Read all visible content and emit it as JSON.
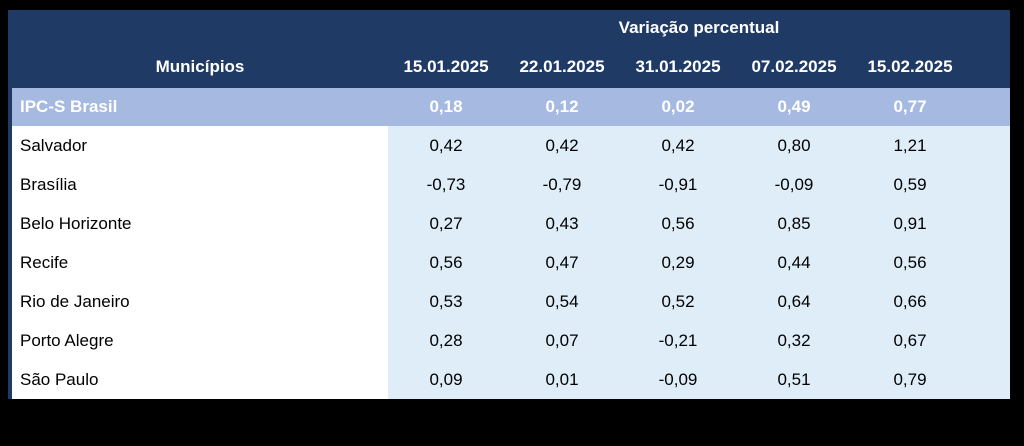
{
  "colors": {
    "page_bg": "#000000",
    "header_bg": "#203A66",
    "highlight_bg": "#A5B9E1",
    "values_bg": "#DEEDF8",
    "header_text": "#FFFFFF",
    "body_text": "#000000"
  },
  "table": {
    "group_header": "Variação percentual",
    "municipios_header": "Municípios",
    "date_columns": [
      "15.01.2025",
      "22.01.2025",
      "31.01.2025",
      "07.02.2025",
      "15.02.2025"
    ],
    "highlight_row": {
      "label": "IPC-S Brasil",
      "values": [
        "0,18",
        "0,12",
        "0,02",
        "0,49",
        "0,77"
      ]
    },
    "rows": [
      {
        "label": "Salvador",
        "values": [
          "0,42",
          "0,42",
          "0,42",
          "0,80",
          "1,21"
        ]
      },
      {
        "label": "Brasília",
        "values": [
          "-0,73",
          "-0,79",
          "-0,91",
          "-0,09",
          "0,59"
        ]
      },
      {
        "label": "Belo Horizonte",
        "values": [
          "0,27",
          "0,43",
          "0,56",
          "0,85",
          "0,91"
        ]
      },
      {
        "label": "Recife",
        "values": [
          "0,56",
          "0,47",
          "0,29",
          "0,44",
          "0,56"
        ]
      },
      {
        "label": "Rio de Janeiro",
        "values": [
          "0,53",
          "0,54",
          "0,52",
          "0,64",
          "0,66"
        ]
      },
      {
        "label": "Porto Alegre",
        "values": [
          "0,28",
          "0,07",
          "-0,21",
          "0,32",
          "0,67"
        ]
      },
      {
        "label": "São Paulo",
        "values": [
          "0,09",
          "0,01",
          "-0,09",
          "0,51",
          "0,79"
        ]
      }
    ]
  },
  "chart_data": {
    "type": "table",
    "title": "Variação percentual",
    "columns": [
      "Municípios",
      "15.01.2025",
      "22.01.2025",
      "31.01.2025",
      "07.02.2025",
      "15.02.2025"
    ],
    "rows": [
      [
        "IPC-S Brasil",
        0.18,
        0.12,
        0.02,
        0.49,
        0.77
      ],
      [
        "Salvador",
        0.42,
        0.42,
        0.42,
        0.8,
        1.21
      ],
      [
        "Brasília",
        -0.73,
        -0.79,
        -0.91,
        -0.09,
        0.59
      ],
      [
        "Belo Horizonte",
        0.27,
        0.43,
        0.56,
        0.85,
        0.91
      ],
      [
        "Recife",
        0.56,
        0.47,
        0.29,
        0.44,
        0.56
      ],
      [
        "Rio de Janeiro",
        0.53,
        0.54,
        0.52,
        0.64,
        0.66
      ],
      [
        "Porto Alegre",
        0.28,
        0.07,
        -0.21,
        0.32,
        0.67
      ],
      [
        "São Paulo",
        0.09,
        0.01,
        -0.09,
        0.51,
        0.79
      ]
    ]
  }
}
